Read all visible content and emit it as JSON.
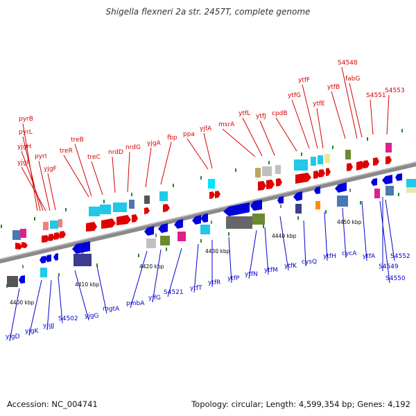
{
  "title": "Shigella flexneri 2a str. 2457T, complete genome",
  "footer": {
    "accession": "Accession: NC_004741",
    "summary": "Topology: circular; Length: 4,599,354 bp; Genes: 4,192"
  },
  "colors": {
    "forward": "#d40000",
    "reverse": "#0000cc",
    "backbone": "#8a8a8a"
  },
  "scale_labels": [
    "4400 kbp",
    "4410 kbp",
    "4420 kbp",
    "4430 kbp",
    "4440 kbp",
    "4450 kbp"
  ],
  "forward_genes": [
    "pyrB",
    "pyrL",
    "yjgH",
    "yjgI",
    "pyrI",
    "yjgF",
    "treR",
    "treB",
    "treC",
    "nrdD",
    "nrdG",
    "yjgA",
    "fbp",
    "ppa",
    "yjfA",
    "msrA",
    "ytfL",
    "ytfJ",
    "cpdB",
    "ytfG",
    "ytfF",
    "ytfE",
    "ytfB",
    "S4548",
    "fabG",
    "S4551",
    "S4553"
  ],
  "reverse_genes": [
    "yjgD",
    "yjgK",
    "yjgJ",
    "S4502",
    "yjgG",
    "mgtA",
    "pmbA",
    "yjfG",
    "S4521",
    "ytfT",
    "ytfR",
    "ytfP",
    "ytfN",
    "ytfM",
    "ytfK",
    "cysQ",
    "ytfH",
    "cycA",
    "ytfA",
    "S4549",
    "S4550",
    "S4552"
  ]
}
